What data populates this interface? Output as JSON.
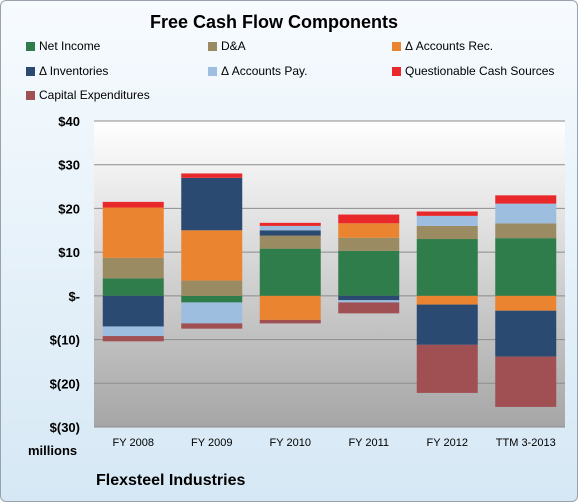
{
  "chart_data": {
    "type": "bar",
    "stacked": true,
    "title": "Free Cash Flow Components",
    "units_label": "millions",
    "company": "Flexsteel Industries",
    "categories": [
      "FY 2008",
      "FY 2009",
      "FY 2010",
      "FY 2011",
      "FY 2012",
      "TTM 3-2013"
    ],
    "ylim": [
      -30,
      40
    ],
    "y_ticks": [
      40,
      30,
      20,
      10,
      0,
      -10,
      -20,
      -30
    ],
    "y_tick_labels": [
      "$40",
      "$30",
      "$20",
      "$10",
      "$-",
      "$(10)",
      "$(20)",
      "$(30)"
    ],
    "grid": true,
    "legend_placement": "top",
    "series": [
      {
        "name": "Net Income",
        "color": "#2e7d4a",
        "values": [
          4.0,
          -1.5,
          10.8,
          10.3,
          13.0,
          13.2
        ]
      },
      {
        "name": "D&A",
        "color": "#9a8b62",
        "values": [
          4.7,
          3.5,
          3.0,
          3.0,
          3.0,
          3.4
        ]
      },
      {
        "name": "Δ Accounts Rec.",
        "color": "#ea8430",
        "values": [
          11.5,
          11.5,
          -5.5,
          3.3,
          -2.0,
          -3.4
        ]
      },
      {
        "name": "Δ Inventories",
        "color": "#2a4a72",
        "values": [
          -7.0,
          12.0,
          1.2,
          -1.0,
          -9.2,
          -10.5
        ]
      },
      {
        "name": "Δ Accounts Pay.",
        "color": "#9ebee0",
        "values": [
          -2.2,
          -4.8,
          1.0,
          -0.5,
          2.3,
          4.5
        ]
      },
      {
        "name": "Questionable Cash Sources",
        "color": "#e8282a",
        "values": [
          1.3,
          1.0,
          0.7,
          2.0,
          1.0,
          1.9
        ]
      },
      {
        "name": "Capital Expenditures",
        "color": "#a04f52",
        "values": [
          -1.2,
          -1.2,
          -0.8,
          -2.5,
          -11.0,
          -11.5
        ]
      }
    ]
  }
}
